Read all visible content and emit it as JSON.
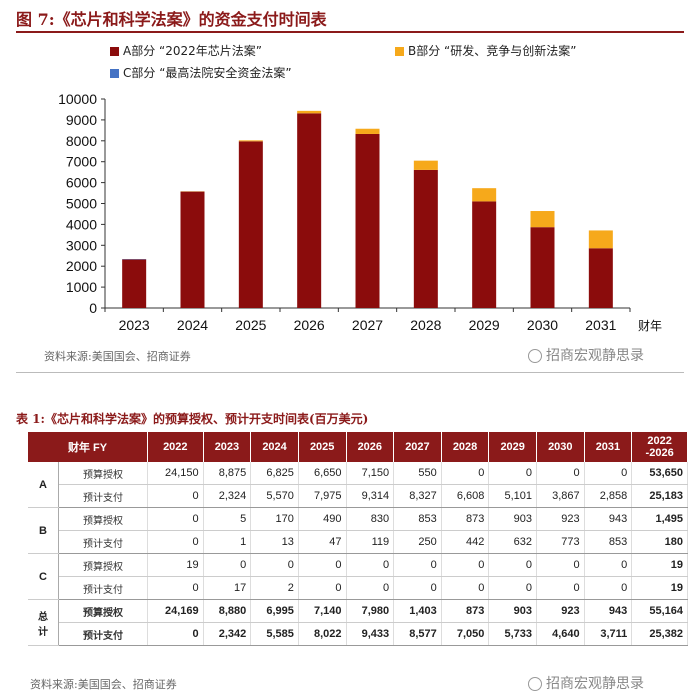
{
  "figure": {
    "title": "图 7:《芯片和科学法案》的资金支付时间表",
    "source": "资料来源:美国国会、招商证券",
    "watermark": "招商宏观静思录"
  },
  "legend": {
    "a": "A部分 “2022年芯片法案”",
    "b": "B部分 “研发、竞争与创新法案”",
    "c": "C部分 “最高法院安全资金法案”"
  },
  "colors": {
    "a": "#8b0c0c",
    "b": "#f6a91b",
    "c": "#4472c4"
  },
  "chart_data": {
    "type": "bar",
    "stacked": true,
    "categories": [
      "2023",
      "2024",
      "2025",
      "2026",
      "2027",
      "2028",
      "2029",
      "2030",
      "2031"
    ],
    "series": [
      {
        "name": "A部分 “2022年芯片法案”",
        "values": [
          2324,
          5570,
          7975,
          9314,
          8327,
          6608,
          5101,
          3867,
          2858
        ]
      },
      {
        "name": "B部分 “研发、竞争与创新法案”",
        "values": [
          1,
          13,
          47,
          119,
          250,
          442,
          632,
          773,
          853
        ]
      },
      {
        "name": "C部分 “最高法院安全资金法案”",
        "values": [
          17,
          2,
          0,
          0,
          0,
          0,
          0,
          0,
          0
        ]
      }
    ],
    "xlabel": "财年",
    "ylim": [
      0,
      10000
    ],
    "yticks": [
      "0",
      "1000",
      "2000",
      "3000",
      "4000",
      "5000",
      "6000",
      "7000",
      "8000",
      "9000",
      "10000"
    ],
    "legend_position": "top-left",
    "grid": false
  },
  "table": {
    "title": "表 1:《芯片和科学法案》的预算授权、预计开支时间表(百万美元)",
    "source": "资料来源:美国国会、招商证券",
    "header": [
      "财年 FY",
      "2022",
      "2023",
      "2024",
      "2025",
      "2026",
      "2027",
      "2028",
      "2029",
      "2030",
      "2031",
      "2022\n-2026"
    ],
    "groups": [
      {
        "name": "A",
        "rows": [
          {
            "label": "预算授权",
            "values": [
              "24,150",
              "8,875",
              "6,825",
              "6,650",
              "7,150",
              "550",
              "0",
              "0",
              "0",
              "0",
              "53,650"
            ]
          },
          {
            "label": "预计支付",
            "values": [
              "0",
              "2,324",
              "5,570",
              "7,975",
              "9,314",
              "8,327",
              "6,608",
              "5,101",
              "3,867",
              "2,858",
              "25,183"
            ]
          }
        ]
      },
      {
        "name": "B",
        "rows": [
          {
            "label": "预算授权",
            "values": [
              "0",
              "5",
              "170",
              "490",
              "830",
              "853",
              "873",
              "903",
              "923",
              "943",
              "1,495"
            ]
          },
          {
            "label": "预计支付",
            "values": [
              "0",
              "1",
              "13",
              "47",
              "119",
              "250",
              "442",
              "632",
              "773",
              "853",
              "180"
            ]
          }
        ]
      },
      {
        "name": "C",
        "rows": [
          {
            "label": "预算授权",
            "values": [
              "19",
              "0",
              "0",
              "0",
              "0",
              "0",
              "0",
              "0",
              "0",
              "0",
              "19"
            ]
          },
          {
            "label": "预计支付",
            "values": [
              "0",
              "17",
              "2",
              "0",
              "0",
              "0",
              "0",
              "0",
              "0",
              "0",
              "19"
            ]
          }
        ]
      },
      {
        "name": "总计",
        "bold": true,
        "rows": [
          {
            "label": "预算授权",
            "values": [
              "24,169",
              "8,880",
              "6,995",
              "7,140",
              "7,980",
              "1,403",
              "873",
              "903",
              "923",
              "943",
              "55,164"
            ]
          },
          {
            "label": "预计支付",
            "values": [
              "0",
              "2,342",
              "5,585",
              "8,022",
              "9,433",
              "8,577",
              "7,050",
              "5,733",
              "4,640",
              "3,711",
              "25,382"
            ]
          }
        ]
      }
    ]
  }
}
